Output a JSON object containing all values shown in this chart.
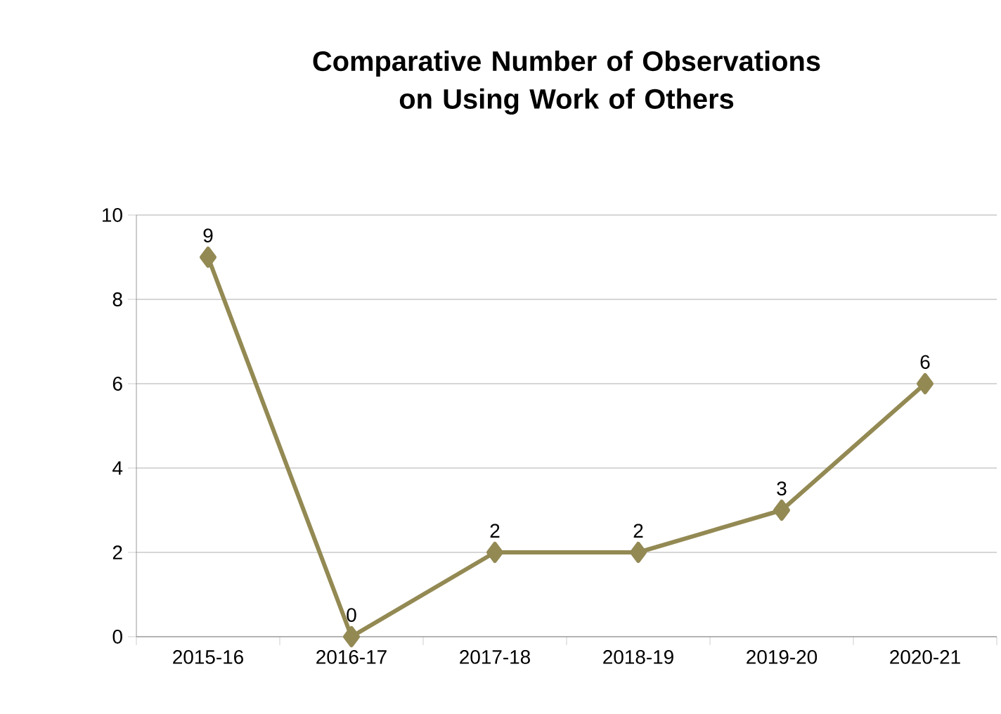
{
  "chart_data": {
    "type": "line",
    "title": "Comparative Number of Observations on Using Work of Others",
    "categories": [
      "2015-16",
      "2016-17",
      "2017-18",
      "2018-19",
      "2019-20",
      "2020-21"
    ],
    "values": [
      9,
      0,
      2,
      2,
      3,
      6
    ],
    "color": "#938953",
    "ylim": [
      0,
      10
    ],
    "yticks": [
      0,
      2,
      4,
      6,
      8,
      10
    ],
    "grid": "y",
    "marker": "diamond",
    "line_style": "solid",
    "data_labels": true
  }
}
